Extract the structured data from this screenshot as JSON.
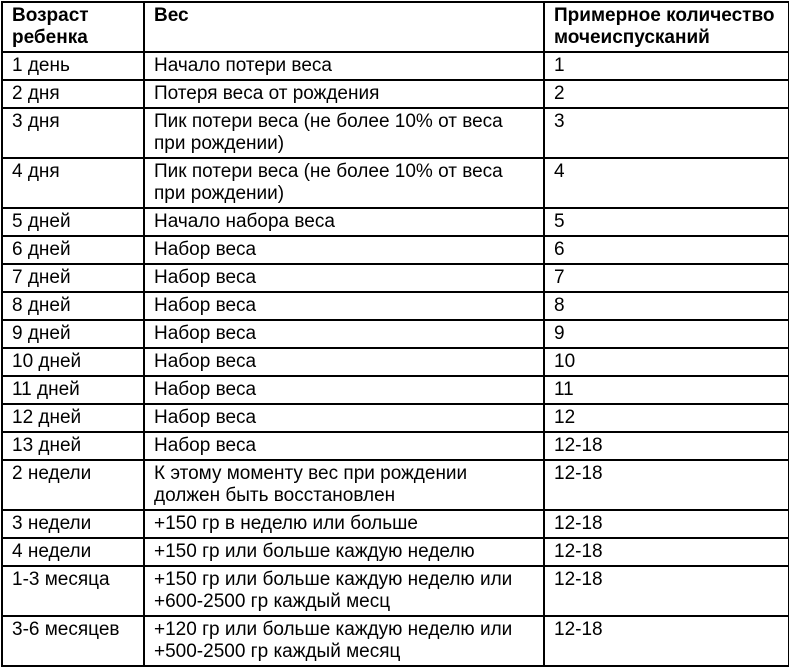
{
  "table": {
    "headers": [
      "Возраст\nребенка",
      "Вес",
      "Примерное количество\nмочеиспусканий"
    ],
    "rows": [
      {
        "age": "1 день",
        "weight": "Начало потери веса",
        "urination": "1"
      },
      {
        "age": "2 дня",
        "weight": "Потеря веса от рождения",
        "urination": "2"
      },
      {
        "age": "3 дня",
        "weight": "Пик потери веса (не более 10% от веса\nпри рождении)",
        "urination": "3"
      },
      {
        "age": "4 дня",
        "weight": "Пик потери веса (не более 10% от веса\nпри рождении)",
        "urination": "4"
      },
      {
        "age": "5 дней",
        "weight": "Начало набора веса",
        "urination": "5"
      },
      {
        "age": "6 дней",
        "weight": "Набор веса",
        "urination": "6"
      },
      {
        "age": "7 дней",
        "weight": "Набор веса",
        "urination": "7"
      },
      {
        "age": "8 дней",
        "weight": "Набор веса",
        "urination": "8"
      },
      {
        "age": "9 дней",
        "weight": "Набор веса",
        "urination": "9"
      },
      {
        "age": "10 дней",
        "weight": "Набор веса",
        "urination": "10"
      },
      {
        "age": "11 дней",
        "weight": "Набор веса",
        "urination": "11"
      },
      {
        "age": "12 дней",
        "weight": "Набор веса",
        "urination": "12"
      },
      {
        "age": "13 дней",
        "weight": "Набор веса",
        "urination": "12-18"
      },
      {
        "age": "2 недели",
        "weight": "К этому моменту вес при рождении\nдолжен быть восстановлен",
        "urination": "12-18"
      },
      {
        "age": "3 недели",
        "weight": "+150 гр в неделю или больше",
        "urination": "12-18"
      },
      {
        "age": "4 недели",
        "weight": "+150 гр или больше каждую неделю",
        "urination": "12-18"
      },
      {
        "age": "1-3 месяца",
        "weight": "+150 гр или больше каждую неделю или\n+600-2500 гр каждый месц",
        "urination": "12-18"
      },
      {
        "age": "3-6 месяцев",
        "weight": "+120 гр или больше каждую неделю или\n+500-2500 гр каждый месяц",
        "urination": "12-18"
      }
    ],
    "colors": {
      "border": "#000000",
      "text": "#000000",
      "background": "#ffffff"
    }
  }
}
